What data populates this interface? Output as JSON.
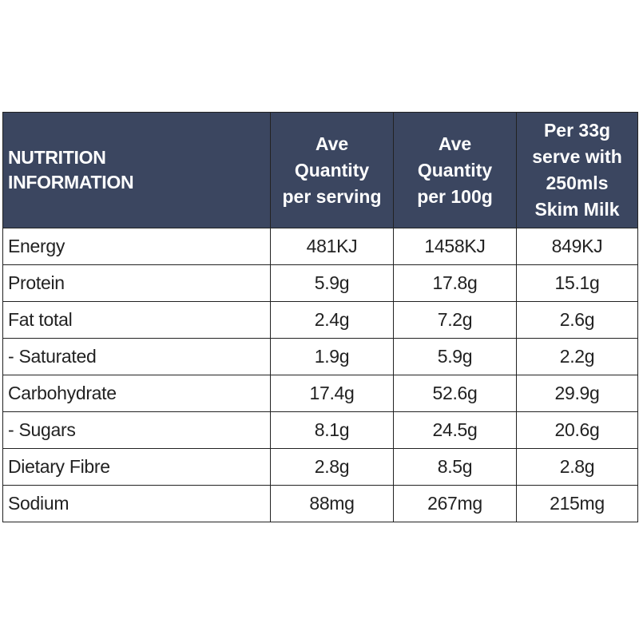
{
  "table": {
    "header": {
      "col0": [
        "NUTRITION",
        "INFORMATION"
      ],
      "col1": [
        "Ave",
        "Quantity",
        "per serving"
      ],
      "col2": [
        "Ave",
        "Quantity",
        "per 100g"
      ],
      "col3": [
        "Per 33g",
        "serve with",
        "250mls",
        "Skim Milk"
      ]
    },
    "rows": [
      {
        "label": "Energy",
        "per_serving": "481KJ",
        "per_100g": "1458KJ",
        "with_milk": "849KJ"
      },
      {
        "label": "Protein",
        "per_serving": "5.9g",
        "per_100g": "17.8g",
        "with_milk": "15.1g"
      },
      {
        "label": "Fat total",
        "per_serving": "2.4g",
        "per_100g": "7.2g",
        "with_milk": "2.6g"
      },
      {
        "label": "- Saturated",
        "per_serving": "1.9g",
        "per_100g": "5.9g",
        "with_milk": "2.2g"
      },
      {
        "label": "Carbohydrate",
        "per_serving": "17.4g",
        "per_100g": "52.6g",
        "with_milk": "29.9g"
      },
      {
        "label": "- Sugars",
        "per_serving": "8.1g",
        "per_100g": "24.5g",
        "with_milk": "20.6g"
      },
      {
        "label": "Dietary Fibre",
        "per_serving": "2.8g",
        "per_100g": "8.5g",
        "with_milk": "2.8g"
      },
      {
        "label": "Sodium",
        "per_serving": "88mg",
        "per_100g": "267mg",
        "with_milk": "215mg"
      }
    ]
  },
  "colors": {
    "header_background": "#3b4660",
    "header_text": "#ffffff",
    "body_text": "#222222",
    "border": "#222222"
  }
}
